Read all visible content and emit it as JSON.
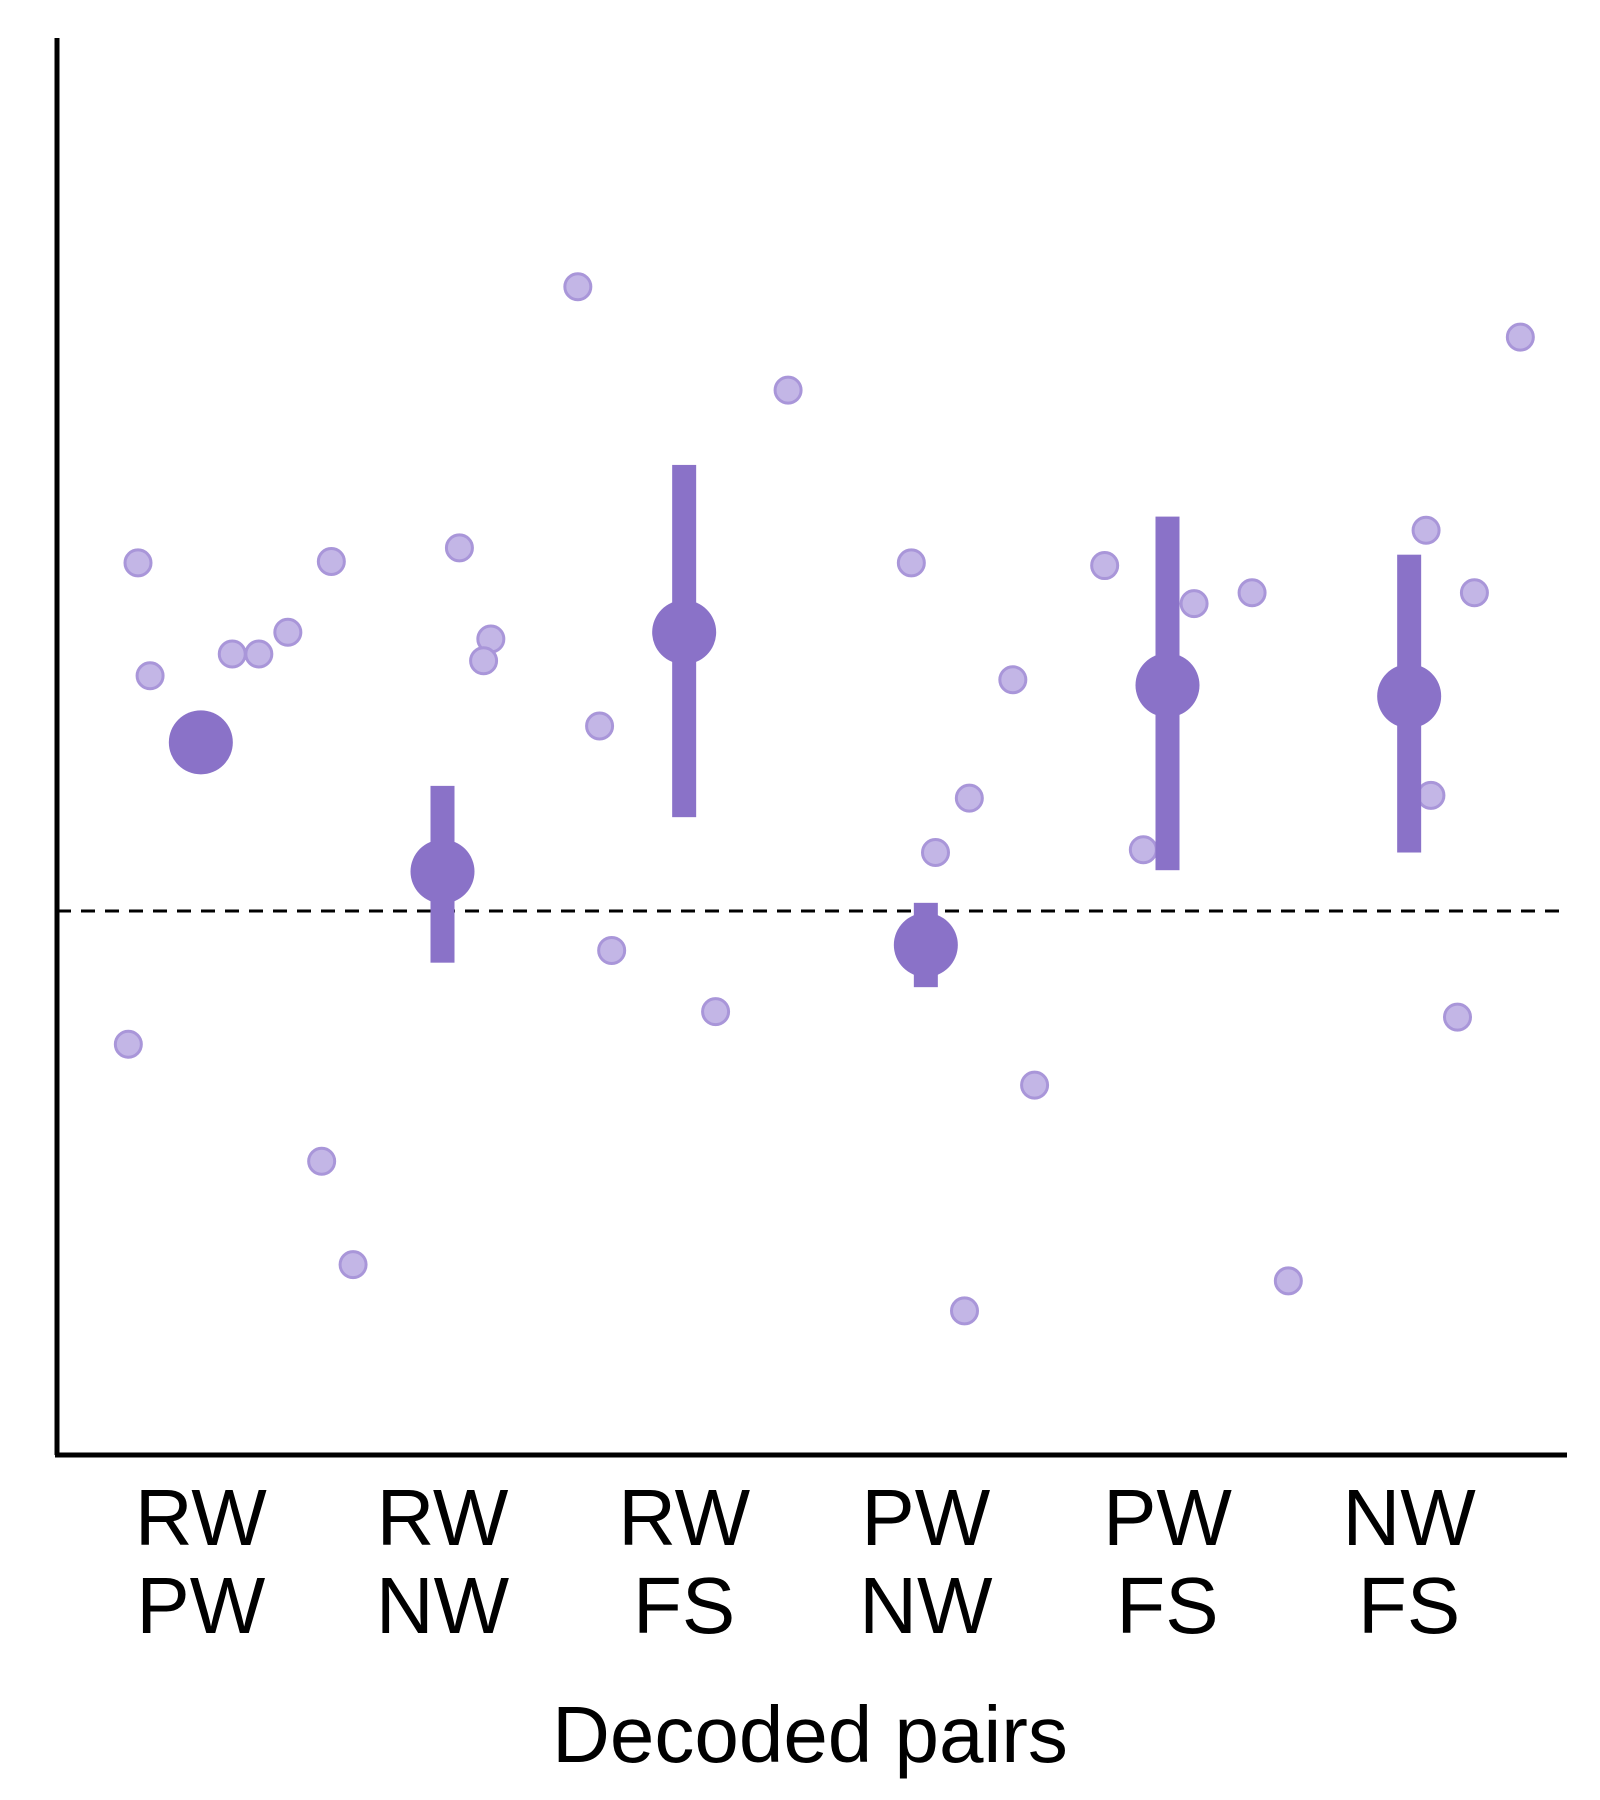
{
  "chart_data": {
    "type": "scatter",
    "title": "",
    "xlabel": "Decoded pairs",
    "ylabel": "",
    "ylim": [
      0,
      1
    ],
    "chance_line": 0.4,
    "categories": [
      [
        "RW",
        "PW"
      ],
      [
        "RW",
        "NW"
      ],
      [
        "RW",
        "FS"
      ],
      [
        "PW",
        "NW"
      ],
      [
        "PW",
        "FS"
      ],
      [
        "NW",
        "FS"
      ]
    ],
    "colors": {
      "mean": "#8a72c8",
      "point": "#c3b6e6",
      "point_stroke": "#a996d9"
    },
    "series": [
      {
        "mean": 0.524,
        "ci": [
          0.524,
          0.524
        ],
        "points": [
          {
            "dx": -0.26,
            "y": 0.656
          },
          {
            "dx": -0.21,
            "y": 0.573
          },
          {
            "dx": -0.3,
            "y": 0.302
          },
          {
            "dx": 0.13,
            "y": 0.589
          },
          {
            "dx": 0.24,
            "y": 0.589
          },
          {
            "dx": 0.36,
            "y": 0.605
          },
          {
            "dx": 0.54,
            "y": 0.657
          },
          {
            "dx": 0.5,
            "y": 0.216
          },
          {
            "dx": 0.63,
            "y": 0.14
          }
        ]
      },
      {
        "mean": 0.429,
        "ci": [
          0.362,
          0.492
        ],
        "points": [
          {
            "dx": 0.07,
            "y": 0.667
          },
          {
            "dx": 0.2,
            "y": 0.6
          },
          {
            "dx": 0.17,
            "y": 0.584
          }
        ]
      },
      {
        "mean": 0.605,
        "ci": [
          0.469,
          0.728
        ],
        "points": [
          {
            "dx": -0.44,
            "y": 0.859
          },
          {
            "dx": -0.35,
            "y": 0.536
          },
          {
            "dx": -0.3,
            "y": 0.371
          },
          {
            "dx": 0.13,
            "y": 0.326
          },
          {
            "dx": 0.43,
            "y": 0.783
          }
        ]
      },
      {
        "mean": 0.375,
        "ci": [
          0.344,
          0.406
        ],
        "points": [
          {
            "dx": -0.06,
            "y": 0.656
          },
          {
            "dx": 0.04,
            "y": 0.443
          },
          {
            "dx": 0.18,
            "y": 0.483
          },
          {
            "dx": 0.36,
            "y": 0.57
          },
          {
            "dx": 0.45,
            "y": 0.272
          },
          {
            "dx": 0.16,
            "y": 0.106
          }
        ]
      },
      {
        "mean": 0.566,
        "ci": [
          0.43,
          0.69
        ],
        "points": [
          {
            "dx": -0.26,
            "y": 0.654
          },
          {
            "dx": 0.11,
            "y": 0.626
          },
          {
            "dx": 0.35,
            "y": 0.634
          },
          {
            "dx": -0.1,
            "y": 0.445
          },
          {
            "dx": 0.5,
            "y": 0.128
          }
        ]
      },
      {
        "mean": 0.558,
        "ci": [
          0.443,
          0.662
        ],
        "points": [
          {
            "dx": 0.07,
            "y": 0.68
          },
          {
            "dx": 0.27,
            "y": 0.634
          },
          {
            "dx": 0.09,
            "y": 0.485
          },
          {
            "dx": 0.2,
            "y": 0.322
          },
          {
            "dx": 0.46,
            "y": 0.822
          }
        ]
      }
    ]
  }
}
